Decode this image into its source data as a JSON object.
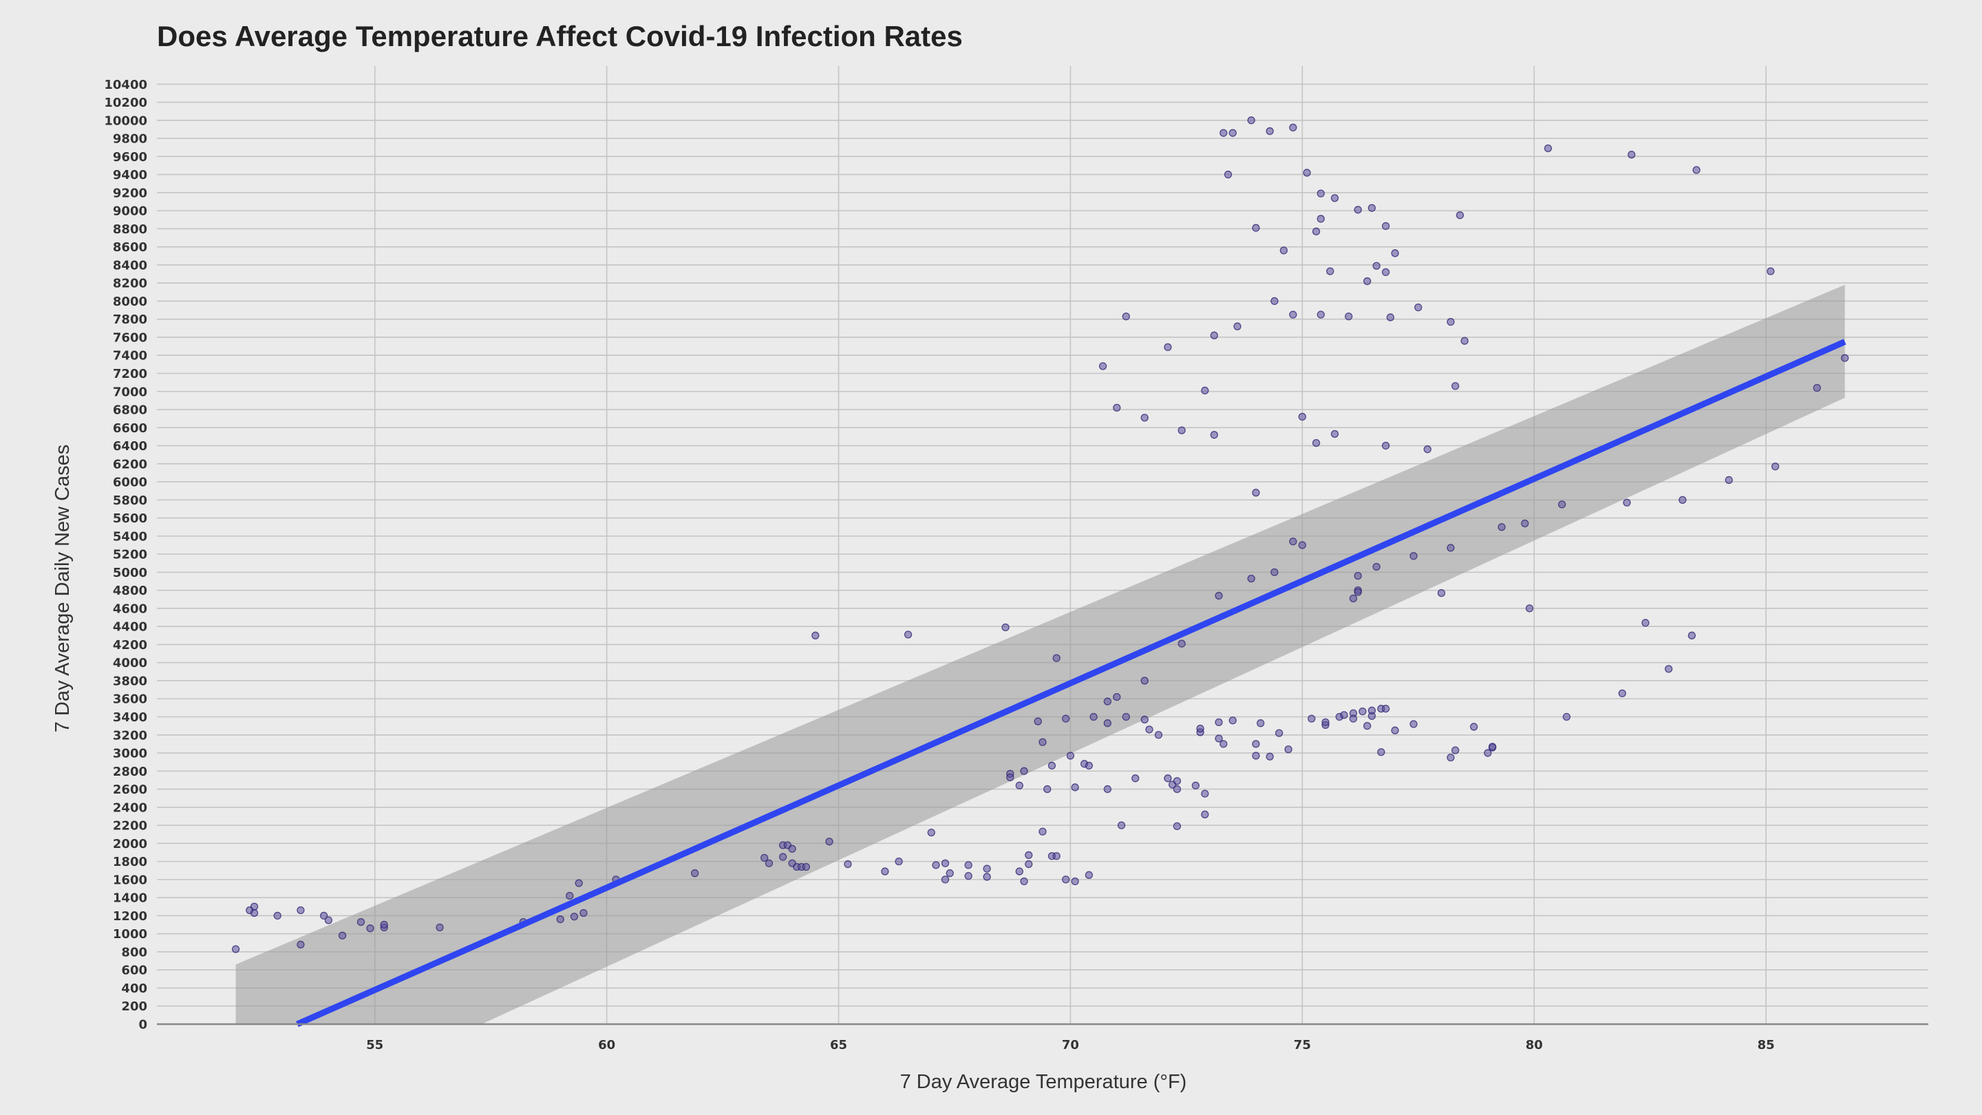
{
  "chart_data": {
    "type": "scatter",
    "title": "Does Average Temperature Affect Covid-19 Infection Rates",
    "xlabel": "7 Day Average Temperature (°F)",
    "ylabel": "7 Day Average Daily New Cases",
    "xlim": [
      50.3,
      88.5
    ],
    "ylim": [
      0,
      10600
    ],
    "x_ticks": [
      55,
      60,
      65,
      70,
      75,
      80,
      85
    ],
    "y_ticks": [
      0,
      200,
      400,
      600,
      800,
      1000,
      1200,
      1400,
      1600,
      1800,
      2000,
      2200,
      2400,
      2600,
      2800,
      3000,
      3200,
      3400,
      3600,
      3800,
      4000,
      4200,
      4400,
      4600,
      4800,
      5000,
      5200,
      5400,
      5600,
      5800,
      6000,
      6200,
      6400,
      6600,
      6800,
      7000,
      7200,
      7400,
      7600,
      7800,
      8000,
      8200,
      8400,
      8600,
      8800,
      9000,
      9200,
      9400,
      9600,
      9800,
      10000,
      10200,
      10400
    ],
    "grid": true,
    "legend": "none",
    "colors": {
      "points": "#5a4e9e",
      "trend": "#2f45f0",
      "ribbon": "#9a9a9a",
      "background": "#ebebeb",
      "grid": "#c4c4c4"
    },
    "trend_line": {
      "method": "linear",
      "x": [
        52.0,
        86.7
      ],
      "y": [
        -300,
        7550
      ],
      "ci_upper": [
        660,
        8180
      ],
      "ci_lower": [
        -1250,
        6930
      ]
    },
    "points": [
      [
        52.0,
        830
      ],
      [
        52.3,
        1260
      ],
      [
        52.4,
        1300
      ],
      [
        52.4,
        1230
      ],
      [
        52.9,
        1200
      ],
      [
        53.4,
        1260
      ],
      [
        53.4,
        880
      ],
      [
        53.9,
        1200
      ],
      [
        54.0,
        1150
      ],
      [
        54.3,
        980
      ],
      [
        54.7,
        1130
      ],
      [
        54.9,
        1060
      ],
      [
        55.2,
        1070
      ],
      [
        55.2,
        1100
      ],
      [
        56.4,
        1070
      ],
      [
        58.2,
        1130
      ],
      [
        59.0,
        1160
      ],
      [
        59.2,
        1420
      ],
      [
        59.3,
        1190
      ],
      [
        59.4,
        1560
      ],
      [
        59.5,
        1230
      ],
      [
        60.2,
        1600
      ],
      [
        61.9,
        1670
      ],
      [
        63.4,
        1840
      ],
      [
        63.5,
        1780
      ],
      [
        63.8,
        1850
      ],
      [
        63.8,
        1980
      ],
      [
        63.9,
        1980
      ],
      [
        64.0,
        1940
      ],
      [
        64.0,
        1780
      ],
      [
        64.1,
        1740
      ],
      [
        64.2,
        1740
      ],
      [
        64.3,
        1740
      ],
      [
        64.5,
        4300
      ],
      [
        64.8,
        2020
      ],
      [
        65.2,
        1770
      ],
      [
        66.0,
        1690
      ],
      [
        66.3,
        1800
      ],
      [
        66.5,
        4310
      ],
      [
        67.0,
        2120
      ],
      [
        67.1,
        1760
      ],
      [
        67.3,
        1780
      ],
      [
        67.3,
        1600
      ],
      [
        67.4,
        1670
      ],
      [
        67.8,
        1760
      ],
      [
        67.8,
        1640
      ],
      [
        68.2,
        1720
      ],
      [
        68.2,
        1630
      ],
      [
        68.6,
        4390
      ],
      [
        68.7,
        2770
      ],
      [
        68.7,
        2730
      ],
      [
        68.9,
        1690
      ],
      [
        68.9,
        2640
      ],
      [
        69.0,
        2800
      ],
      [
        69.0,
        1580
      ],
      [
        69.1,
        1770
      ],
      [
        69.1,
        1870
      ],
      [
        69.3,
        3350
      ],
      [
        69.4,
        2130
      ],
      [
        69.4,
        3120
      ],
      [
        69.5,
        2600
      ],
      [
        69.6,
        2860
      ],
      [
        69.6,
        1860
      ],
      [
        69.7,
        4050
      ],
      [
        69.7,
        1860
      ],
      [
        69.9,
        3380
      ],
      [
        69.9,
        1600
      ],
      [
        70.0,
        2970
      ],
      [
        70.1,
        1580
      ],
      [
        70.1,
        2620
      ],
      [
        70.3,
        2880
      ],
      [
        70.4,
        2860
      ],
      [
        70.4,
        1650
      ],
      [
        70.5,
        3400
      ],
      [
        70.7,
        7280
      ],
      [
        70.8,
        3330
      ],
      [
        70.8,
        3570
      ],
      [
        70.8,
        2600
      ],
      [
        71.0,
        6820
      ],
      [
        71.0,
        3620
      ],
      [
        71.1,
        2200
      ],
      [
        71.2,
        7830
      ],
      [
        71.2,
        3400
      ],
      [
        71.4,
        2720
      ],
      [
        71.6,
        3800
      ],
      [
        71.6,
        6710
      ],
      [
        71.6,
        3370
      ],
      [
        71.7,
        3260
      ],
      [
        71.9,
        3200
      ],
      [
        72.1,
        7490
      ],
      [
        72.1,
        2720
      ],
      [
        72.2,
        2650
      ],
      [
        72.3,
        2690
      ],
      [
        72.3,
        2600
      ],
      [
        72.3,
        2190
      ],
      [
        72.4,
        4210
      ],
      [
        72.4,
        6570
      ],
      [
        72.7,
        2640
      ],
      [
        72.8,
        3230
      ],
      [
        72.8,
        3270
      ],
      [
        72.9,
        7010
      ],
      [
        72.9,
        2550
      ],
      [
        72.9,
        2320
      ],
      [
        73.1,
        7620
      ],
      [
        73.1,
        6520
      ],
      [
        73.2,
        4740
      ],
      [
        73.2,
        3160
      ],
      [
        73.2,
        3340
      ],
      [
        73.3,
        9860
      ],
      [
        73.3,
        3100
      ],
      [
        73.4,
        9400
      ],
      [
        73.5,
        9860
      ],
      [
        73.5,
        3360
      ],
      [
        73.6,
        7720
      ],
      [
        73.9,
        10000
      ],
      [
        73.9,
        4930
      ],
      [
        74.0,
        2970
      ],
      [
        74.0,
        3100
      ],
      [
        74.0,
        5880
      ],
      [
        74.0,
        8810
      ],
      [
        74.1,
        3330
      ],
      [
        74.3,
        9880
      ],
      [
        74.3,
        2960
      ],
      [
        74.4,
        8000
      ],
      [
        74.4,
        5000
      ],
      [
        74.5,
        3220
      ],
      [
        74.6,
        8560
      ],
      [
        74.7,
        3040
      ],
      [
        74.8,
        9920
      ],
      [
        74.8,
        7850
      ],
      [
        74.8,
        5340
      ],
      [
        75.0,
        6720
      ],
      [
        75.0,
        5300
      ],
      [
        75.1,
        9420
      ],
      [
        75.2,
        3380
      ],
      [
        75.3,
        6430
      ],
      [
        75.3,
        8770
      ],
      [
        75.4,
        8910
      ],
      [
        75.4,
        9190
      ],
      [
        75.4,
        7850
      ],
      [
        75.5,
        3310
      ],
      [
        75.5,
        3340
      ],
      [
        75.6,
        8330
      ],
      [
        75.7,
        9140
      ],
      [
        75.7,
        6530
      ],
      [
        75.8,
        3400
      ],
      [
        75.9,
        3420
      ],
      [
        76.0,
        7830
      ],
      [
        76.1,
        3440
      ],
      [
        76.1,
        3380
      ],
      [
        76.1,
        4710
      ],
      [
        76.2,
        4800
      ],
      [
        76.2,
        4780
      ],
      [
        76.2,
        4960
      ],
      [
        76.2,
        9010
      ],
      [
        76.3,
        3460
      ],
      [
        76.4,
        8220
      ],
      [
        76.4,
        3300
      ],
      [
        76.5,
        3410
      ],
      [
        76.5,
        3470
      ],
      [
        76.5,
        9030
      ],
      [
        76.6,
        8390
      ],
      [
        76.6,
        5060
      ],
      [
        76.7,
        3490
      ],
      [
        76.7,
        3010
      ],
      [
        76.8,
        3490
      ],
      [
        76.8,
        6400
      ],
      [
        76.8,
        8830
      ],
      [
        76.8,
        8320
      ],
      [
        76.9,
        7820
      ],
      [
        77.0,
        8530
      ],
      [
        77.0,
        3250
      ],
      [
        77.4,
        3320
      ],
      [
        77.4,
        5180
      ],
      [
        77.5,
        7930
      ],
      [
        77.7,
        6360
      ],
      [
        78.0,
        4770
      ],
      [
        78.2,
        2950
      ],
      [
        78.2,
        5270
      ],
      [
        78.2,
        7770
      ],
      [
        78.3,
        3030
      ],
      [
        78.3,
        7060
      ],
      [
        78.4,
        8950
      ],
      [
        78.5,
        7560
      ],
      [
        78.7,
        3290
      ],
      [
        79.0,
        3000
      ],
      [
        79.1,
        3060
      ],
      [
        79.1,
        3070
      ],
      [
        79.3,
        5500
      ],
      [
        79.8,
        5540
      ],
      [
        79.9,
        4600
      ],
      [
        80.3,
        9690
      ],
      [
        80.6,
        5750
      ],
      [
        80.7,
        3400
      ],
      [
        81.9,
        3660
      ],
      [
        82.0,
        5770
      ],
      [
        82.1,
        9620
      ],
      [
        82.4,
        4440
      ],
      [
        82.9,
        3930
      ],
      [
        83.2,
        5800
      ],
      [
        83.4,
        4300
      ],
      [
        83.5,
        9450
      ],
      [
        84.2,
        6020
      ],
      [
        85.1,
        8330
      ],
      [
        85.2,
        6170
      ],
      [
        86.1,
        7040
      ],
      [
        86.7,
        7370
      ]
    ]
  }
}
